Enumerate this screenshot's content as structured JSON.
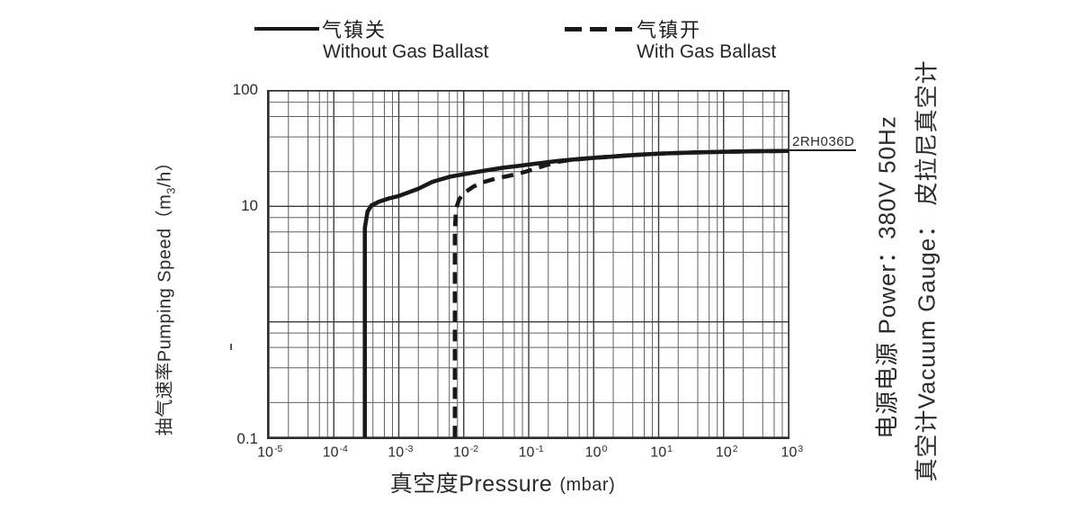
{
  "legend": {
    "items": [
      {
        "zh": "气镇关",
        "en": "Without Gas Ballast",
        "style": "solid"
      },
      {
        "zh": "气镇开",
        "en": "With Gas Ballast",
        "style": "dashed"
      }
    ]
  },
  "model_label": "2RH036D",
  "x_axis": {
    "title_zh": "真空度",
    "title_en": "Pressure",
    "unit": "(mbar)"
  },
  "y_axis": {
    "title_zh": "抽气速率",
    "title_en": "Pumping Speed",
    "unit_open": "（m",
    "unit_sub": "3",
    "unit_close": "/h）"
  },
  "side_notes": {
    "power": "电源电源  Power：380V 50Hz",
    "gauge": "真空计Vacuum Gauge：  皮拉尼真空计"
  },
  "chart_data": {
    "type": "line",
    "x_scale": "log",
    "y_scale": "log",
    "xlabel": "真空度Pressure (mbar)",
    "ylabel": "抽气速率Pumping Speed (m3/h)",
    "xlim": [
      1e-05,
      1000
    ],
    "ylim": [
      0.1,
      100
    ],
    "grid": true,
    "minor_multiples": [
      2,
      4,
      6,
      8
    ],
    "legend_position": "top",
    "x_ticks": [
      {
        "base": "10",
        "exp": "-5",
        "value": 1e-05
      },
      {
        "base": "10",
        "exp": "-4",
        "value": 0.0001
      },
      {
        "base": "10",
        "exp": "-3",
        "value": 0.001
      },
      {
        "base": "10",
        "exp": "-2",
        "value": 0.01
      },
      {
        "base": "10",
        "exp": "-1",
        "value": 0.1
      },
      {
        "base": "10",
        "exp": "0",
        "value": 1
      },
      {
        "base": "10",
        "exp": "1",
        "value": 10
      },
      {
        "base": "10",
        "exp": "2",
        "value": 100
      },
      {
        "base": "10",
        "exp": "3",
        "value": 1000
      }
    ],
    "y_ticks": [
      {
        "label": "100",
        "value": 100
      },
      {
        "label": "10",
        "value": 10
      },
      {
        "label": "0.1",
        "value": 0.1
      }
    ],
    "annotation": {
      "text": "2RH036D",
      "x": 1000,
      "y": 30
    },
    "series": [
      {
        "name": "气镇关 Without Gas Ballast",
        "style": "solid",
        "ultimate_pressure_mbar": 0.0003,
        "points": [
          [
            0.0003,
            0.1
          ],
          [
            0.0003,
            2
          ],
          [
            0.0003,
            6.5
          ],
          [
            0.00033,
            9
          ],
          [
            0.00038,
            10.2
          ],
          [
            0.0005,
            11
          ],
          [
            0.0007,
            11.7
          ],
          [
            0.001,
            12.3
          ],
          [
            0.002,
            14.2
          ],
          [
            0.0033,
            16.3
          ],
          [
            0.006,
            18
          ],
          [
            0.01,
            19
          ],
          [
            0.02,
            20.3
          ],
          [
            0.04,
            21.6
          ],
          [
            0.07,
            22.4
          ],
          [
            0.1,
            23
          ],
          [
            0.2,
            24.2
          ],
          [
            0.3,
            24.8
          ],
          [
            0.5,
            25.5
          ],
          [
            1,
            26.3
          ],
          [
            2,
            27
          ],
          [
            3,
            27.5
          ],
          [
            5,
            28
          ],
          [
            10,
            28.6
          ],
          [
            30,
            29.2
          ],
          [
            100,
            29.7
          ],
          [
            300,
            30
          ],
          [
            1000,
            30.2
          ]
        ]
      },
      {
        "name": "气镇开 With Gas Ballast",
        "style": "dashed",
        "ultimate_pressure_mbar": 0.0073,
        "points": [
          [
            0.0073,
            0.1
          ],
          [
            0.0073,
            2
          ],
          [
            0.0073,
            6
          ],
          [
            0.0076,
            9.5
          ],
          [
            0.0085,
            11.5
          ],
          [
            0.01,
            13
          ],
          [
            0.014,
            14.8
          ],
          [
            0.02,
            16.2
          ],
          [
            0.03,
            17.3
          ],
          [
            0.05,
            18.4
          ],
          [
            0.08,
            19.6
          ],
          [
            0.12,
            21
          ],
          [
            0.18,
            22.6
          ],
          [
            0.28,
            24.3
          ],
          [
            0.45,
            25.3
          ],
          [
            1,
            26.3
          ],
          [
            3,
            27.5
          ],
          [
            10,
            28.6
          ],
          [
            30,
            29.2
          ],
          [
            100,
            29.7
          ],
          [
            300,
            30
          ],
          [
            1000,
            30.2
          ]
        ]
      }
    ]
  }
}
